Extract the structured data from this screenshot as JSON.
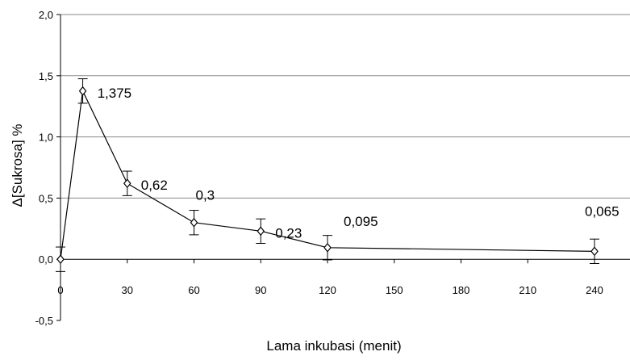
{
  "chart_data": {
    "type": "line",
    "xlabel": "Lama inkubasi (menit)",
    "ylabel": "Δ[Sukrosa] %",
    "xlim": [
      0,
      240
    ],
    "ylim": [
      -0.5,
      2.0
    ],
    "x_ticks": [
      0,
      30,
      60,
      90,
      120,
      150,
      180,
      210,
      240
    ],
    "x_tick_labels": [
      "0",
      "30",
      "60",
      "90",
      "120",
      "150",
      "180",
      "210",
      "240"
    ],
    "y_ticks": [
      -0.5,
      0.0,
      0.5,
      1.0,
      1.5,
      2.0
    ],
    "y_tick_labels": [
      "-0,5",
      "0,0",
      "0,5",
      "1,0",
      "1,5",
      "2,0"
    ],
    "grid": "horizontal",
    "series": [
      {
        "marker": "diamond",
        "x": [
          0,
          10,
          30,
          60,
          90,
          120,
          240
        ],
        "y": [
          0,
          1.375,
          0.62,
          0.3,
          0.23,
          0.095,
          0.065
        ],
        "error": [
          0.1,
          0.1,
          0.1,
          0.1,
          0.1,
          0.1,
          0.1
        ],
        "labels": [
          "",
          "1,375",
          "0,62",
          "0,3",
          "0,23",
          "0,095",
          "0,065"
        ]
      }
    ]
  }
}
